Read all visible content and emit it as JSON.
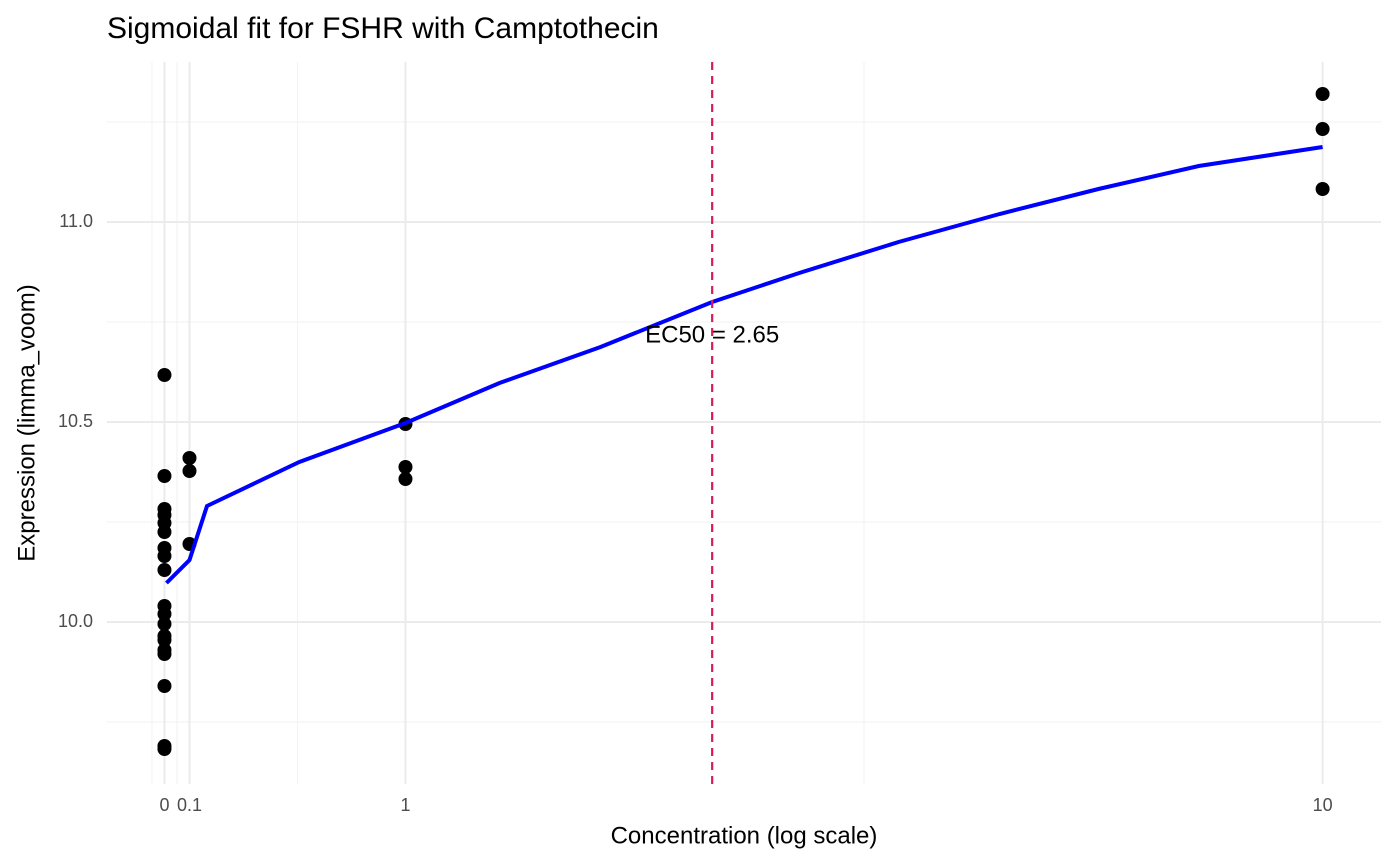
{
  "chart_data": {
    "type": "scatter",
    "title": "Sigmoidal fit for FSHR with Camptothecin",
    "x_label": "Concentration (log scale)",
    "y_label": "Expression (limma_voom)",
    "xscale": "pseudo_log",
    "xlim": [
      -0.23,
      11.26
    ],
    "xticks": [
      0,
      0.1,
      1,
      10
    ],
    "ylim": [
      9.595,
      11.4
    ],
    "yticks": [
      {
        "value": 10,
        "label": "10.0"
      },
      10.5,
      {
        "value": 11,
        "label": "11.0"
      }
    ],
    "grid": true,
    "points": {
      "color": "#000000",
      "x": [
        0,
        0,
        0,
        0,
        0,
        0,
        0,
        0,
        0,
        0,
        0,
        0,
        0,
        0,
        0,
        0,
        0,
        0,
        0,
        0.1,
        0.1,
        0.1,
        1,
        1,
        1,
        10,
        10,
        10
      ],
      "y": [
        10.6175,
        10.365,
        10.2825,
        10.2675,
        10.2475,
        10.225,
        10.185,
        10.165,
        10.13,
        10.04,
        10.02,
        9.995,
        9.965,
        9.955,
        9.93,
        9.92,
        9.84,
        9.69,
        9.6825,
        10.41,
        10.3775,
        10.195,
        10.495,
        10.3875,
        10.3575,
        11.32,
        11.2325,
        11.0825
      ]
    },
    "fit": {
      "color": "#0000ff",
      "x": [
        0.008,
        0.1,
        0.17,
        0.545,
        1,
        1.44,
        1.97,
        2.65,
        3.27,
        4.1,
        5.11,
        6.3,
        7.76,
        10
      ],
      "y": [
        10.0975,
        10.155,
        10.29,
        10.4,
        10.4975,
        10.5975,
        10.6875,
        10.8,
        10.8725,
        10.95,
        11.02,
        11.0825,
        11.14,
        11.1875
      ]
    },
    "ec50": {
      "value": 2.65,
      "label": "EC50 = 2.65",
      "color": "#d81b5b"
    }
  }
}
